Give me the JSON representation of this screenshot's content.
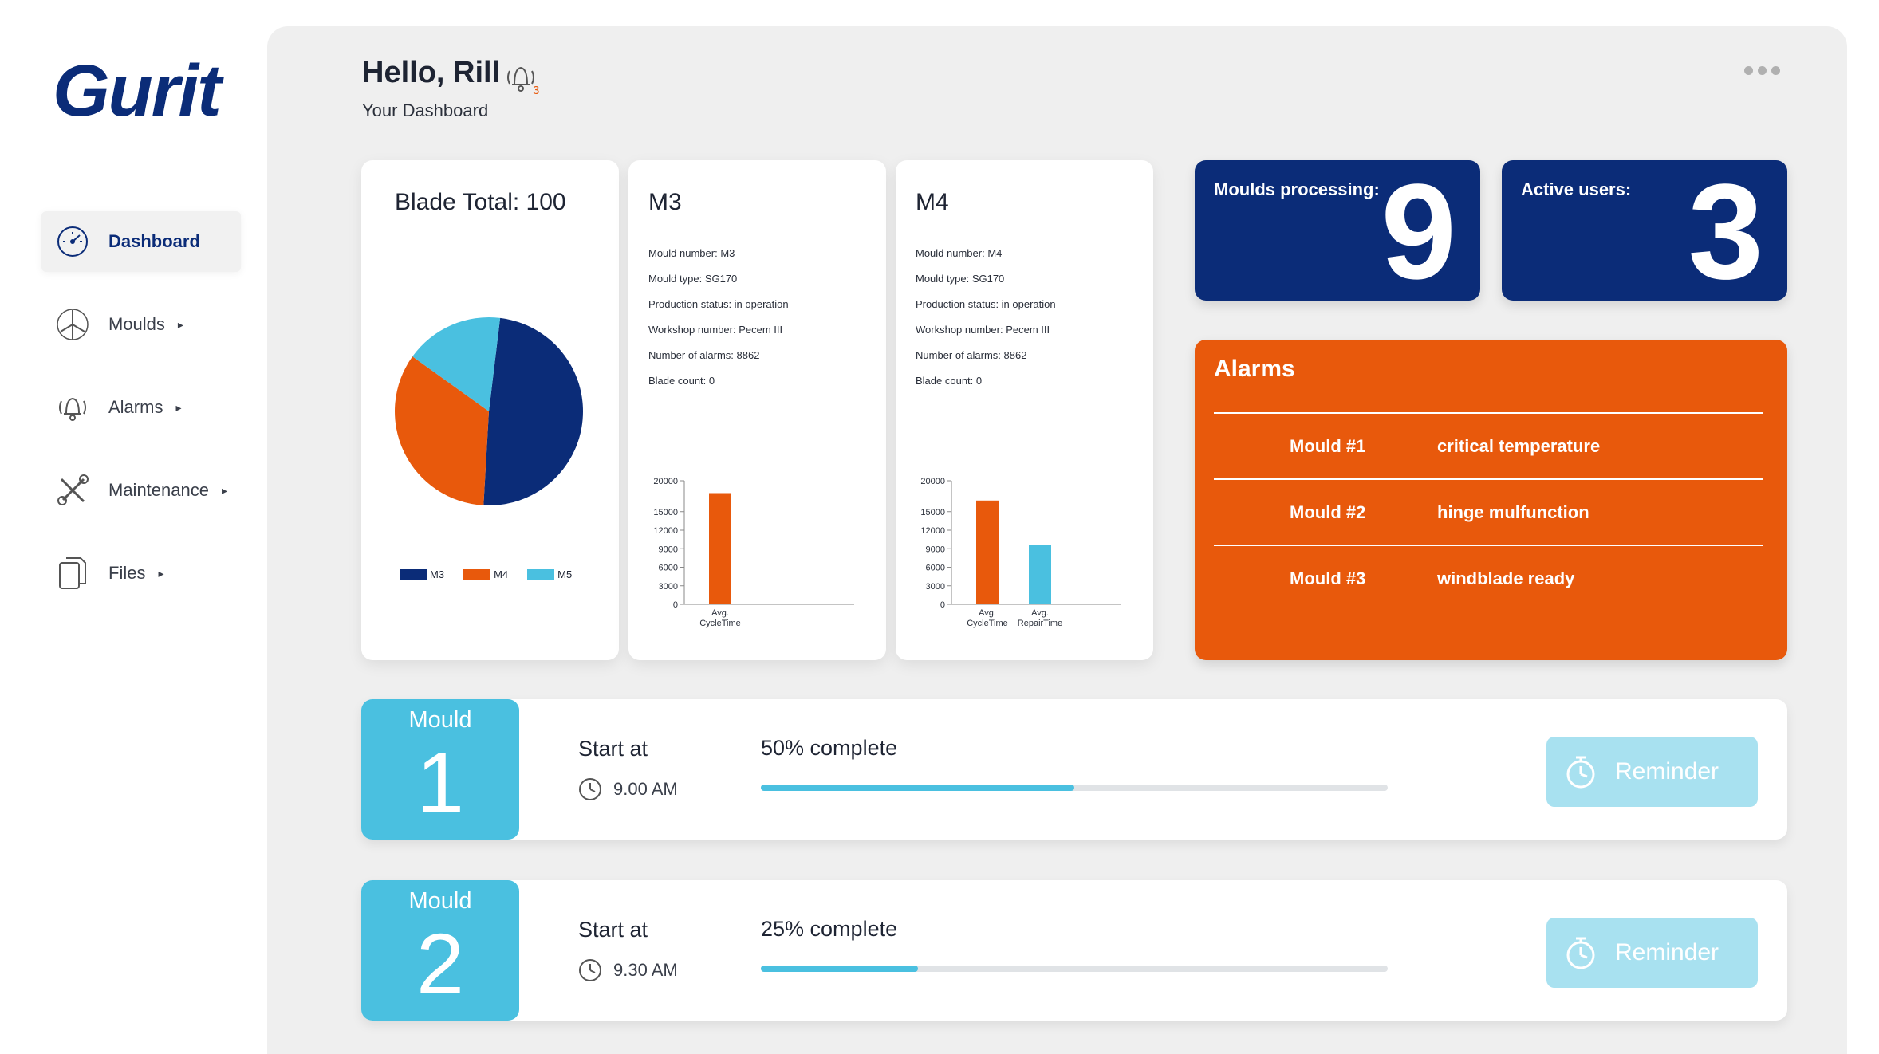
{
  "brand": {
    "logo_text": "Gurit",
    "color": "#0b2c78"
  },
  "sidebar": {
    "items": [
      {
        "label": "Dashboard",
        "icon": "speedometer-icon",
        "active": true,
        "arrow": ""
      },
      {
        "label": "Moulds",
        "icon": "wind-turbine-icon",
        "active": false,
        "arrow": "▸"
      },
      {
        "label": "Alarms",
        "icon": "bell-icon",
        "active": false,
        "arrow": "▸"
      },
      {
        "label": "Maintenance",
        "icon": "tools-icon",
        "active": false,
        "arrow": "▸"
      },
      {
        "label": "Files",
        "icon": "files-icon",
        "active": false,
        "arrow": "▸"
      }
    ]
  },
  "header": {
    "greeting": "Hello, Rill",
    "subtitle": "Your Dashboard",
    "notification_count": "3"
  },
  "blade_card": {
    "title": "Blade Total: 100",
    "legend": [
      "M3",
      "M4",
      "M5"
    ]
  },
  "m3_card": {
    "title": "M3",
    "info": [
      "Mould number: M3",
      "Mould type: SG170",
      "Production status: in operation",
      "Workshop number: Pecem III",
      "Number of alarms: 8862",
      "Blade count: 0"
    ]
  },
  "m4_card": {
    "title": "M4",
    "info": [
      "Mould number: M4",
      "Mould type: SG170",
      "Production status: in operation",
      "Workshop number: Pecem III",
      "Number of alarms: 8862",
      "Blade count: 0"
    ]
  },
  "stats": {
    "moulds_processing_label": "Moulds processing:",
    "moulds_processing_value": "9",
    "active_users_label": "Active users:",
    "active_users_value": "3"
  },
  "alarms": {
    "title": "Alarms",
    "rows": [
      {
        "mould": "Mould #1",
        "message": "critical temperature"
      },
      {
        "mould": "Mould #2",
        "message": "hinge mulfunction"
      },
      {
        "mould": "Mould #3",
        "message": "windblade ready"
      }
    ]
  },
  "moulds": [
    {
      "label": "Mould",
      "number": "1",
      "start_label": "Start at",
      "start_time": "9.00 AM",
      "progress_label": "50% complete",
      "progress": 0.5,
      "button": "Reminder"
    },
    {
      "label": "Mould",
      "number": "2",
      "start_label": "Start at",
      "start_time": "9.30 AM",
      "progress_label": "25% complete",
      "progress": 0.25,
      "button": "Reminder"
    }
  ],
  "colors": {
    "navy": "#0b2c78",
    "orange": "#e8590c",
    "cyan": "#4ac0e0",
    "light_cyan": "#a8e1f0"
  },
  "chart_data": [
    {
      "type": "pie",
      "title": "Blade Total: 100",
      "series": [
        {
          "name": "M3",
          "value": 49,
          "color": "#0b2c78"
        },
        {
          "name": "M4",
          "value": 34,
          "color": "#e8590c"
        },
        {
          "name": "M5",
          "value": 17,
          "color": "#4ac0e0"
        }
      ]
    },
    {
      "type": "bar",
      "title": "M3",
      "categories": [
        "Avg. CycleTime"
      ],
      "category_lines": [
        [
          "Avg.",
          "CycleTime"
        ]
      ],
      "values": [
        18000
      ],
      "colors": [
        "#e8590c"
      ],
      "ylim": [
        0,
        20000
      ],
      "yticks": [
        0,
        3000,
        6000,
        9000,
        12000,
        15000,
        20000
      ]
    },
    {
      "type": "bar",
      "title": "M4",
      "categories": [
        "Avg. CycleTime",
        "Avg. RepairTime"
      ],
      "category_lines": [
        [
          "Avg.",
          "CycleTime"
        ],
        [
          "Avg.",
          "RepairTime"
        ]
      ],
      "values": [
        16800,
        9600
      ],
      "colors": [
        "#e8590c",
        "#4ac0e0"
      ],
      "ylim": [
        0,
        20000
      ],
      "yticks": [
        0,
        3000,
        6000,
        9000,
        12000,
        15000,
        20000
      ]
    }
  ]
}
